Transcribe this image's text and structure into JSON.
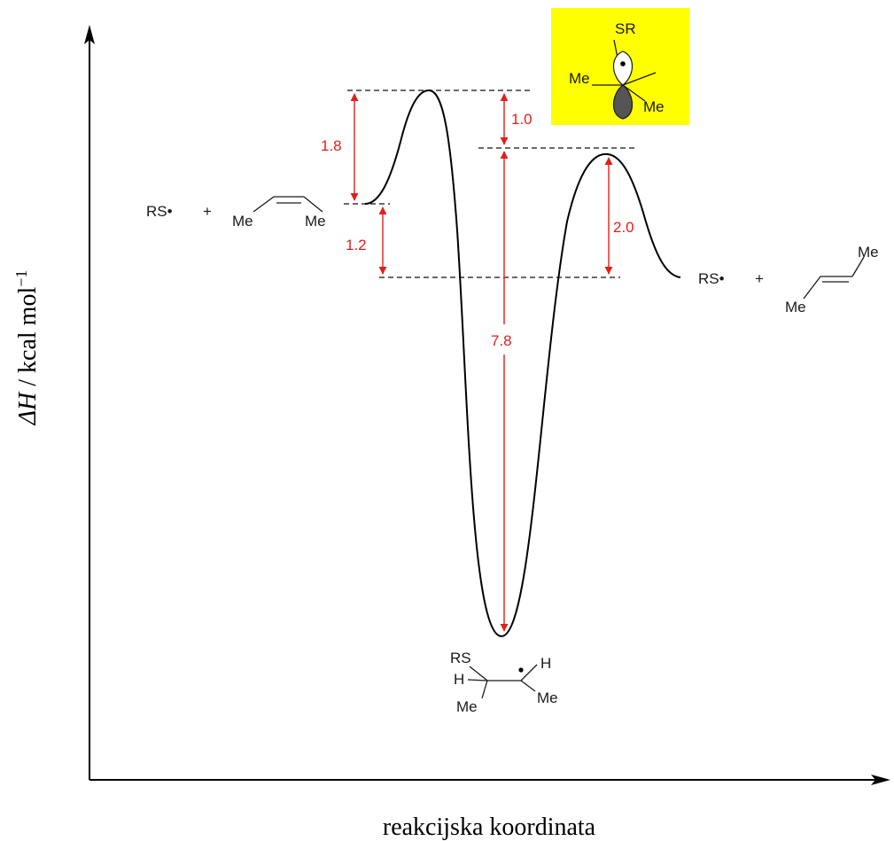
{
  "axes": {
    "y_label_italic": "ΔH",
    "y_label_rest": " / kcal mol",
    "y_label_sup": "−1",
    "x_label": "reakcijska koordinata"
  },
  "energy_gaps": {
    "gap_1_8": "1.8",
    "gap_1_2": "1.2",
    "gap_1_0": "1.0",
    "gap_7_8": "7.8",
    "gap_2_0": "2.0"
  },
  "species": {
    "reactant_radical": "RS•",
    "plus_reactant": "+",
    "cis_me_left": "Me",
    "cis_me_right": "Me",
    "product_radical": "RS•",
    "plus_product": "+",
    "trans_me_top": "Me",
    "trans_me_bottom": "Me",
    "int_rs": "RS",
    "int_h_left": "H",
    "int_h_right": "H",
    "int_me_left": "Me",
    "int_me_right": "Me",
    "inset_sr": "SR",
    "inset_me_left": "Me",
    "inset_me_right": "Me"
  },
  "colors": {
    "arrow_red": "#e0201b",
    "inset_background": "#ffff00",
    "curve": "#000000"
  }
}
